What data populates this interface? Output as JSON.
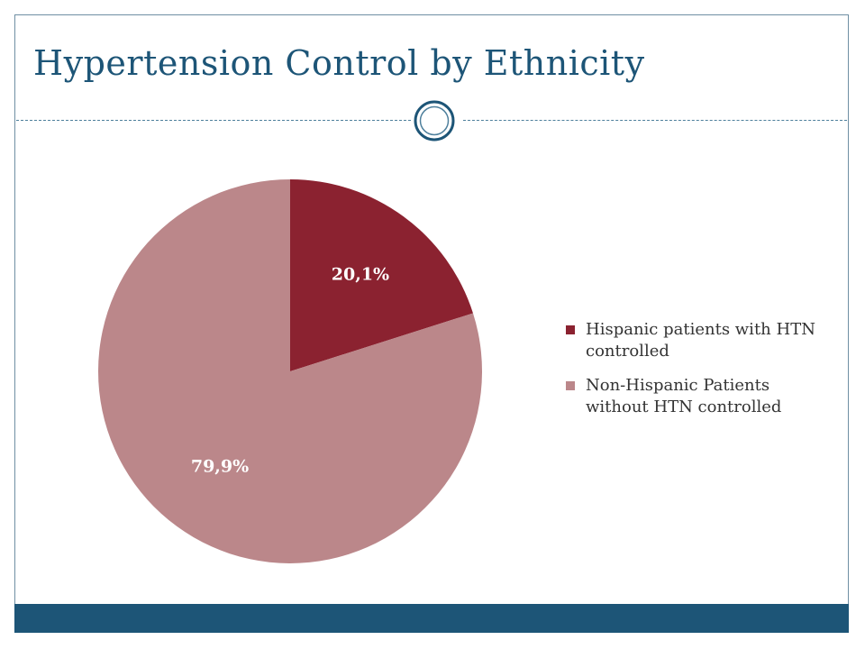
{
  "slide": {
    "title": "Hypertension Control by Ethnicity"
  },
  "theme": {
    "title_color": "#1d5577",
    "footer_color": "#1d5577",
    "ornament_icon": "circle-ring-icon"
  },
  "chart_data": {
    "type": "pie",
    "title": "",
    "legend_position": "right",
    "slices": [
      {
        "name": "Hispanic patients with HTN controlled",
        "value": 20.1,
        "label": "20,1%",
        "color": "#8b2230"
      },
      {
        "name": "Non-Hispanic Patients without HTN controlled",
        "value": 79.9,
        "label": "79,9%",
        "color": "#bb878a"
      }
    ]
  }
}
